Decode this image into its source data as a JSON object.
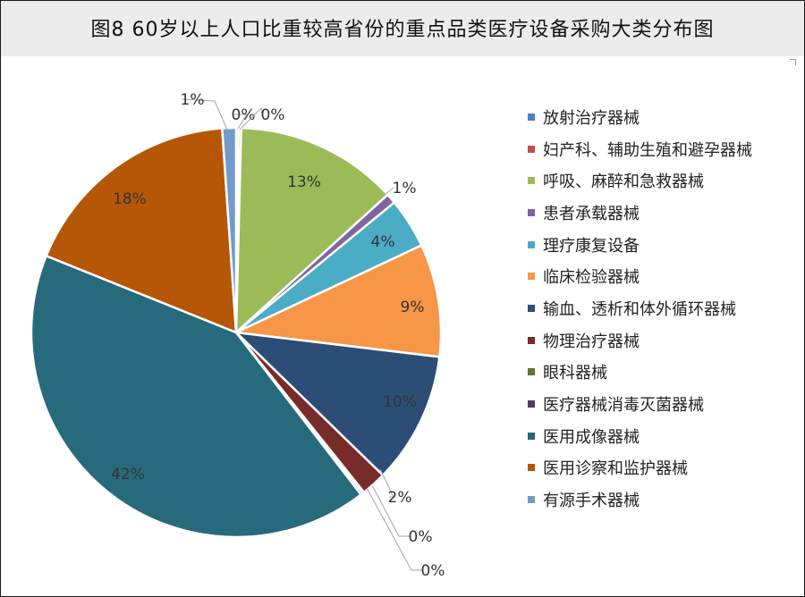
{
  "title": "图8 60岁以上人口比重较高省份的重点品类医疗设备采购大类分布图",
  "chart_data": {
    "type": "pie",
    "legend_position": "right",
    "slices": [
      {
        "label": "放射治疗器械",
        "value": 0.2,
        "data_label": "0%",
        "color": "#4f81bd"
      },
      {
        "label": "妇产科、辅助生殖和避孕器械",
        "value": 0.2,
        "data_label": "0%",
        "color": "#c0504d"
      },
      {
        "label": "呼吸、麻醉和急救器械",
        "value": 13,
        "data_label": "13%",
        "color": "#9bbb59"
      },
      {
        "label": "患者承载器械",
        "value": 0.8,
        "data_label": "1%",
        "color": "#8064a2"
      },
      {
        "label": "理疗康复设备",
        "value": 4,
        "data_label": "4%",
        "color": "#4bacc6"
      },
      {
        "label": "临床检验器械",
        "value": 9,
        "data_label": "9%",
        "color": "#f79646"
      },
      {
        "label": "输血、透析和体外循环器械",
        "value": 10.5,
        "data_label": "10%",
        "color": "#2c4d75"
      },
      {
        "label": "物理治疗器械",
        "value": 2,
        "data_label": "2%",
        "color": "#772c2a"
      },
      {
        "label": "眼科器械",
        "value": 0.1,
        "data_label": "0%",
        "color": "#5f7530"
      },
      {
        "label": "医疗器械消毒灭菌器械",
        "value": 0.2,
        "data_label": "0%",
        "color": "#4d3b62"
      },
      {
        "label": "医用成像器械",
        "value": 42,
        "data_label": "42%",
        "color": "#276a7c"
      },
      {
        "label": "医用诊察和监护器械",
        "value": 18,
        "data_label": "18%",
        "color": "#b65708"
      },
      {
        "label": "有源手术器械",
        "value": 1.1,
        "data_label": "1%",
        "color": "#729aca"
      }
    ]
  }
}
